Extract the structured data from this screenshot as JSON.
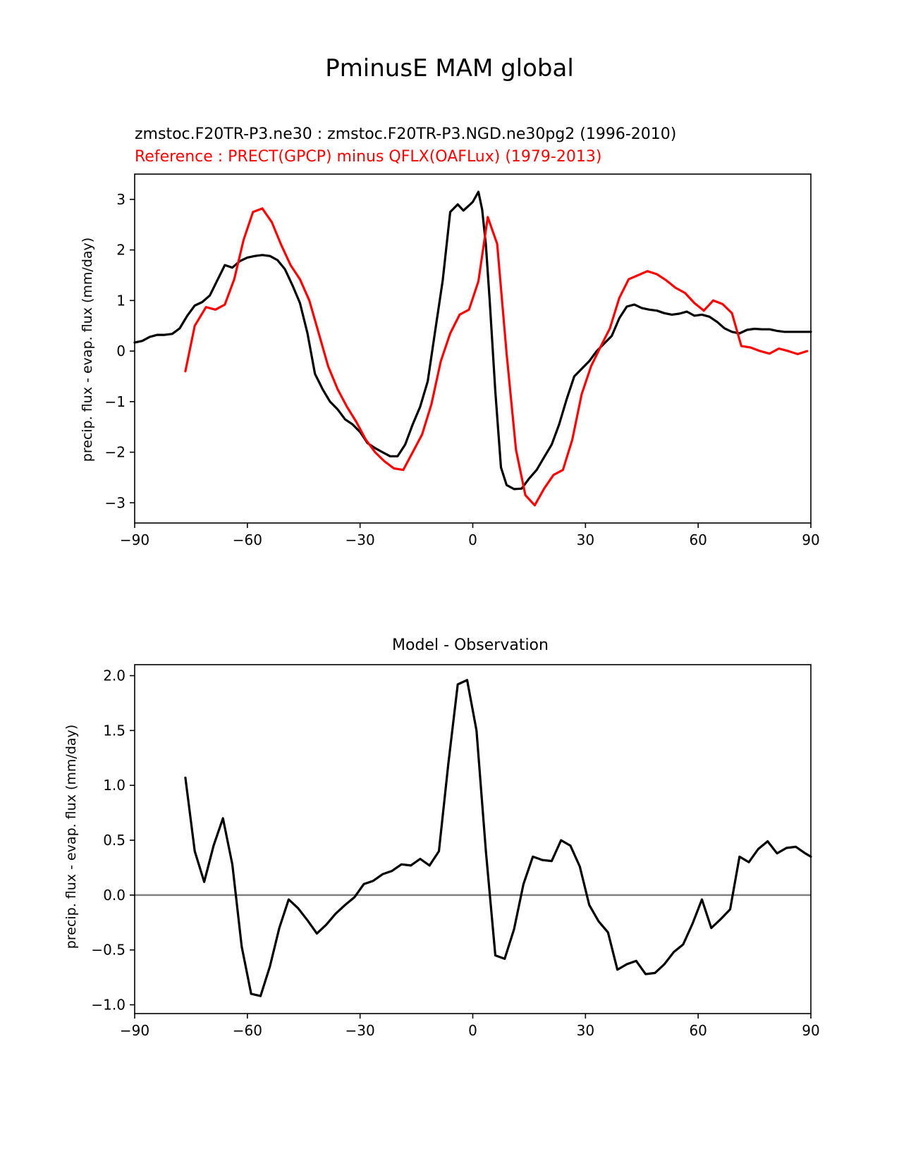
{
  "figure_title": "PminusE MAM global",
  "chart_data": [
    {
      "type": "line",
      "subtitle_model": "zmstoc.F20TR-P3.ne30 : zmstoc.F20TR-P3.NGD.ne30pg2 (1996-2010)",
      "subtitle_reference": "Reference : PRECT(GPCP) minus QFLX(OAFLux) (1979-2013)",
      "xlabel": "",
      "ylabel": "precip. flux - evap. flux (mm/day)",
      "xlim": [
        -90,
        90
      ],
      "ylim": [
        -3.4,
        3.5
      ],
      "xticks": [
        -90,
        -60,
        -30,
        0,
        30,
        60,
        90
      ],
      "yticks": [
        -3,
        -2,
        -1,
        0,
        1,
        2,
        3
      ],
      "series": [
        {
          "name": "Model",
          "color": "#000000",
          "x": [
            -90,
            -88,
            -86,
            -84,
            -82,
            -80,
            -78,
            -76,
            -74,
            -72,
            -70,
            -68,
            -66,
            -64,
            -62,
            -60,
            -58,
            -56,
            -54,
            -52,
            -50,
            -48,
            -46,
            -44,
            -42,
            -40,
            -38,
            -36,
            -34,
            -32,
            -30,
            -28,
            -26,
            -24,
            -22,
            -20,
            -18,
            -16,
            -14,
            -12,
            -10,
            -8,
            -6,
            -4,
            -2.5,
            -1,
            0,
            1.5,
            2.5,
            3.5,
            4.5,
            6,
            7.5,
            9,
            11,
            13,
            15,
            17,
            19,
            21,
            23,
            25,
            27,
            29,
            31,
            33,
            35,
            37,
            39,
            41,
            43,
            45,
            47,
            49,
            51,
            53,
            55,
            57,
            59,
            61,
            63,
            65,
            67,
            69,
            71,
            73,
            75,
            77,
            79,
            81,
            83,
            85,
            87,
            89,
            90
          ],
          "y": [
            0.17,
            0.2,
            0.28,
            0.32,
            0.32,
            0.34,
            0.45,
            0.7,
            0.9,
            0.97,
            1.1,
            1.4,
            1.7,
            1.65,
            1.78,
            1.85,
            1.88,
            1.9,
            1.88,
            1.8,
            1.62,
            1.3,
            0.95,
            0.35,
            -0.45,
            -0.75,
            -1.0,
            -1.15,
            -1.35,
            -1.45,
            -1.6,
            -1.82,
            -1.92,
            -2.0,
            -2.08,
            -2.08,
            -1.85,
            -1.45,
            -1.1,
            -0.6,
            0.4,
            1.4,
            2.75,
            2.9,
            2.78,
            2.88,
            2.95,
            3.15,
            2.8,
            2.1,
            1.0,
            -0.8,
            -2.3,
            -2.65,
            -2.73,
            -2.72,
            -2.52,
            -2.35,
            -2.1,
            -1.85,
            -1.45,
            -0.95,
            -0.5,
            -0.35,
            -0.2,
            0.0,
            0.15,
            0.3,
            0.65,
            0.88,
            0.92,
            0.85,
            0.82,
            0.8,
            0.75,
            0.72,
            0.74,
            0.78,
            0.7,
            0.72,
            0.68,
            0.58,
            0.45,
            0.38,
            0.35,
            0.42,
            0.44,
            0.43,
            0.43,
            0.4,
            0.38,
            0.38,
            0.38,
            0.38,
            0.38
          ]
        },
        {
          "name": "Reference",
          "color": "#ff0000",
          "x": [
            -76.5,
            -74,
            -71,
            -68.5,
            -66,
            -63.5,
            -61,
            -58.5,
            -56,
            -53.5,
            -51,
            -48.5,
            -46,
            -43.5,
            -41,
            -38.5,
            -36,
            -33.5,
            -31,
            -28.5,
            -26,
            -23.5,
            -21,
            -18.5,
            -16,
            -13.5,
            -11,
            -8.5,
            -6,
            -3.5,
            -1,
            1.5,
            4,
            6.5,
            9,
            11.5,
            14,
            16.5,
            19,
            21.5,
            24,
            26.5,
            29,
            31.5,
            34,
            36.5,
            39,
            41.5,
            44,
            46.5,
            49,
            51.5,
            54,
            56.5,
            59,
            61.5,
            64,
            66.5,
            69,
            71.5,
            74,
            76.5,
            79,
            81.5,
            84,
            86.5,
            89
          ],
          "y": [
            -0.4,
            0.5,
            0.87,
            0.82,
            0.92,
            1.42,
            2.2,
            2.75,
            2.82,
            2.55,
            2.1,
            1.7,
            1.42,
            1.0,
            0.35,
            -0.3,
            -0.75,
            -1.1,
            -1.4,
            -1.75,
            -2.0,
            -2.18,
            -2.32,
            -2.35,
            -2.0,
            -1.65,
            -1.05,
            -0.2,
            0.35,
            0.72,
            0.82,
            1.38,
            2.65,
            2.12,
            -0.05,
            -1.95,
            -2.85,
            -3.05,
            -2.72,
            -2.45,
            -2.35,
            -1.75,
            -0.85,
            -0.3,
            0.08,
            0.45,
            1.05,
            1.42,
            1.5,
            1.58,
            1.52,
            1.4,
            1.25,
            1.15,
            0.95,
            0.8,
            1.0,
            0.93,
            0.75,
            0.1,
            0.07,
            0.0,
            -0.05,
            0.05,
            0.0,
            -0.06,
            0.0
          ]
        }
      ]
    },
    {
      "type": "line",
      "title": "Model - Observation",
      "xlabel": "",
      "ylabel": "precip. flux - evap. flux (mm/day)",
      "xlim": [
        -90,
        90
      ],
      "ylim": [
        -1.08,
        2.1
      ],
      "xticks": [
        -90,
        -60,
        -30,
        0,
        30,
        60,
        90
      ],
      "yticks": [
        -1.0,
        -0.5,
        0.0,
        0.5,
        1.0,
        1.5,
        2.0
      ],
      "ytick_labels": [
        "−1.0",
        "−0.5",
        "0.0",
        "0.5",
        "1.0",
        "1.5",
        "2.0"
      ],
      "zero_line_color": "#808080",
      "series": [
        {
          "name": "Model - Observation",
          "color": "#000000",
          "x": [
            -76.5,
            -74,
            -71.5,
            -69,
            -66.5,
            -64,
            -61.5,
            -59,
            -56.5,
            -54,
            -51.5,
            -49,
            -46.5,
            -44,
            -41.5,
            -39,
            -36.5,
            -34,
            -31.5,
            -29,
            -26.5,
            -24,
            -21.5,
            -19,
            -16.5,
            -14,
            -11.5,
            -9,
            -6.5,
            -4,
            -1.5,
            1,
            3.5,
            6,
            8.5,
            11,
            13.5,
            16,
            18.5,
            21,
            23.5,
            26,
            28.5,
            31,
            33.5,
            36,
            38.5,
            41,
            43.5,
            46,
            48.5,
            51,
            53.5,
            56,
            58.5,
            61,
            63.5,
            66,
            68.5,
            71,
            73.5,
            76,
            78.5,
            81,
            83.5,
            86,
            88.5,
            90
          ],
          "y": [
            1.07,
            0.4,
            0.12,
            0.45,
            0.7,
            0.28,
            -0.47,
            -0.9,
            -0.92,
            -0.65,
            -0.3,
            -0.04,
            -0.12,
            -0.23,
            -0.35,
            -0.27,
            -0.17,
            -0.09,
            -0.02,
            0.1,
            0.13,
            0.19,
            0.22,
            0.28,
            0.27,
            0.33,
            0.27,
            0.4,
            1.2,
            1.92,
            1.96,
            1.5,
            0.4,
            -0.55,
            -0.58,
            -0.31,
            0.1,
            0.35,
            0.32,
            0.31,
            0.5,
            0.45,
            0.26,
            -0.09,
            -0.24,
            -0.34,
            -0.68,
            -0.63,
            -0.6,
            -0.72,
            -0.71,
            -0.63,
            -0.52,
            -0.45,
            -0.26,
            -0.04,
            -0.3,
            -0.22,
            -0.13,
            0.35,
            0.3,
            0.42,
            0.49,
            0.38,
            0.43,
            0.44,
            0.38,
            0.35
          ]
        }
      ]
    }
  ]
}
